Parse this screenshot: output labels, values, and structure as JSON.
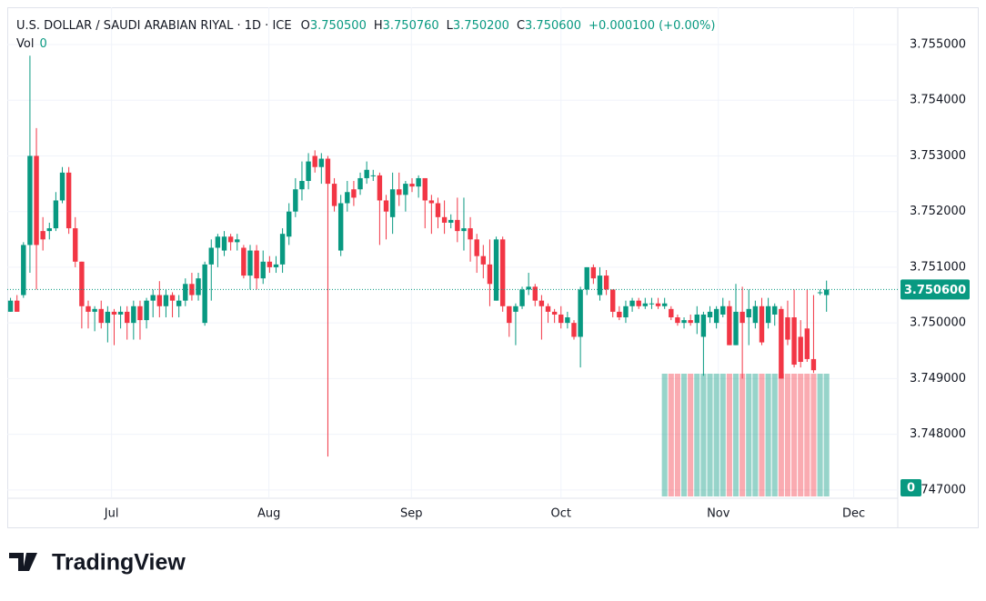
{
  "chart_data": {
    "type": "candlestick",
    "title": "U.S. DOLLAR / SAUDI ARABIAN RIYAL · 1D · ICE",
    "ohlc_legend": [
      {
        "label": "O",
        "value": "3.750500"
      },
      {
        "label": "H",
        "value": "3.750760"
      },
      {
        "label": "L",
        "value": "3.750200"
      },
      {
        "label": "C",
        "value": "3.750600"
      }
    ],
    "change": "+0.000100 (+0.00%)",
    "volume_label": "Vol",
    "volume_value": "0",
    "last_price_label": "3.750600",
    "volume_axis_label": "0",
    "up_color": "#089981",
    "down_color": "#f23645",
    "open": [
      3.7502,
      3.7504,
      3.7505,
      3.7514,
      3.753,
      3.75165,
      3.75165,
      3.7517,
      3.7522,
      3.7527,
      3.7517,
      3.7511,
      3.7503,
      3.7502,
      3.75025,
      3.75,
      3.7502,
      3.75015,
      3.7502,
      3.75,
      3.7503,
      3.75005,
      3.7504,
      3.7505,
      3.7503,
      3.7505,
      3.7503,
      3.7504,
      3.7507,
      3.7505,
      3.75,
      3.75105,
      3.75135,
      3.7513,
      3.75155,
      3.75145,
      3.75135,
      3.75085,
      3.7513,
      3.7508,
      3.7511,
      3.751,
      3.75105,
      3.75155,
      3.752,
      3.7524,
      3.75255,
      3.753,
      3.7528,
      3.75295,
      3.7525,
      3.7513,
      3.75215,
      3.7524,
      3.7524,
      3.7526,
      3.75265,
      3.75265,
      3.7522,
      3.7519,
      3.7524,
      3.7523,
      3.7525,
      3.75245,
      3.7526,
      3.7522,
      3.75215,
      3.7519,
      3.7518,
      3.75185,
      3.75165,
      3.7517,
      3.7515,
      3.7512,
      3.75105,
      3.7504,
      3.7515,
      3.7503,
      3.7502,
      3.7503,
      3.7506,
      3.75065,
      3.7504,
      3.7503,
      3.7502,
      3.75015,
      3.75,
      3.75,
      3.74975,
      3.7506,
      3.751,
      3.7505,
      3.75085,
      3.7506,
      3.7502,
      3.7501,
      3.7503,
      3.7504,
      3.7503,
      3.75035,
      3.75035,
      3.7503,
      3.75025,
      3.7501,
      3.75,
      3.75005,
      3.75,
      3.74975,
      3.7501,
      3.75,
      3.75015,
      3.7503,
      3.7496,
      3.7502,
      3.7501,
      3.75,
      3.7503,
      3.75,
      3.75015,
      3.75025,
      3.7501,
      3.7501,
      3.74975,
      3.7499,
      3.74935,
      3.75055,
      3.7505
    ],
    "high": [
      3.75045,
      3.7505,
      3.75145,
      3.7548,
      3.7535,
      3.7519,
      3.7518,
      3.75235,
      3.7528,
      3.7528,
      3.7519,
      3.7511,
      3.7504,
      3.7503,
      3.7504,
      3.7503,
      3.75025,
      3.7503,
      3.7503,
      3.7504,
      3.7504,
      3.75045,
      3.7506,
      3.75075,
      3.7506,
      3.75055,
      3.7505,
      3.7508,
      3.7509,
      3.7509,
      3.7511,
      3.7515,
      3.7516,
      3.75165,
      3.7516,
      3.7516,
      3.7514,
      3.7514,
      3.7514,
      3.7513,
      3.7512,
      3.7512,
      3.7517,
      3.75215,
      3.7526,
      3.7529,
      3.75305,
      3.7531,
      3.75305,
      3.753,
      3.7526,
      3.7523,
      3.75255,
      3.75255,
      3.7527,
      3.7529,
      3.75275,
      3.7527,
      3.7523,
      3.7527,
      3.7527,
      3.75255,
      3.7526,
      3.75265,
      3.7526,
      3.7523,
      3.75225,
      3.7522,
      3.75195,
      3.75225,
      3.75225,
      3.7519,
      3.7516,
      3.7514,
      3.7515,
      3.75155,
      3.75155,
      3.7503,
      3.75035,
      3.75065,
      3.7509,
      3.7507,
      3.7505,
      3.75035,
      3.75025,
      3.7503,
      3.7502,
      3.75005,
      3.75065,
      3.751,
      3.75105,
      3.751,
      3.75095,
      3.7506,
      3.7503,
      3.7504,
      3.75045,
      3.75045,
      3.75045,
      3.75045,
      3.75045,
      3.75045,
      3.7503,
      3.75015,
      3.7501,
      3.75015,
      3.7503,
      3.7502,
      3.7503,
      3.7503,
      3.75045,
      3.7504,
      3.7507,
      3.75065,
      3.7506,
      3.7504,
      3.75045,
      3.75045,
      3.75035,
      3.7503,
      3.7504,
      3.7506,
      3.75005,
      3.7506,
      3.7505,
      3.7506,
      3.75076
    ],
    "low": [
      3.7502,
      3.7502,
      3.75045,
      3.7509,
      3.7506,
      3.7513,
      3.7515,
      3.75165,
      3.75215,
      3.7516,
      3.751,
      3.7499,
      3.7499,
      3.74985,
      3.7499,
      3.74965,
      3.7496,
      3.7499,
      3.7497,
      3.7497,
      3.7497,
      3.7499,
      3.7501,
      3.7501,
      3.7501,
      3.7501,
      3.7501,
      3.7503,
      3.7504,
      3.7504,
      3.74995,
      3.7504,
      3.751,
      3.7512,
      3.7513,
      3.7513,
      3.7508,
      3.7506,
      3.7506,
      3.7507,
      3.7509,
      3.7509,
      3.7509,
      3.7514,
      3.7519,
      3.7522,
      3.7524,
      3.7527,
      3.7525,
      3.7476,
      3.752,
      3.7512,
      3.752,
      3.7521,
      3.7523,
      3.7525,
      3.75255,
      3.7514,
      3.7515,
      3.7516,
      3.7521,
      3.752,
      3.75235,
      3.75225,
      3.7517,
      3.7516,
      3.7517,
      3.7516,
      3.7517,
      3.75145,
      3.7513,
      3.7511,
      3.7509,
      3.7508,
      3.7503,
      3.7504,
      3.7502,
      3.74975,
      3.7496,
      3.75025,
      3.7505,
      3.7503,
      3.7497,
      3.75,
      3.75,
      3.7499,
      3.7499,
      3.7497,
      3.7492,
      3.7505,
      3.7507,
      3.7504,
      3.7505,
      3.7501,
      3.75005,
      3.75,
      3.7502,
      3.75025,
      3.75025,
      3.75025,
      3.75025,
      3.75025,
      3.75005,
      3.74995,
      3.7499,
      3.74995,
      3.7498,
      3.74905,
      3.75,
      3.7499,
      3.7501,
      3.7496,
      3.7496,
      3.749,
      3.7496,
      3.7499,
      3.7496,
      3.7499,
      3.74995,
      3.749,
      3.7496,
      3.7492,
      3.7492,
      3.7493,
      3.7491,
      3.7505,
      3.7502
    ],
    "close": [
      3.7504,
      3.7502,
      3.7514,
      3.753,
      3.7514,
      3.7515,
      3.7517,
      3.7522,
      3.7527,
      3.7517,
      3.7511,
      3.7503,
      3.7502,
      3.75025,
      3.75,
      3.7502,
      3.75015,
      3.7502,
      3.75,
      3.7503,
      3.75005,
      3.7504,
      3.7505,
      3.7503,
      3.7505,
      3.7504,
      3.7504,
      3.7507,
      3.7505,
      3.7508,
      3.75105,
      3.75135,
      3.75155,
      3.75155,
      3.75145,
      3.7515,
      3.75085,
      3.7513,
      3.7508,
      3.7511,
      3.751,
      3.75105,
      3.7516,
      3.752,
      3.7524,
      3.75255,
      3.7529,
      3.7528,
      3.75295,
      3.7525,
      3.7521,
      3.75215,
      3.75235,
      3.75225,
      3.7526,
      3.75275,
      3.75265,
      3.7522,
      3.752,
      3.7524,
      3.7523,
      3.7525,
      3.75245,
      3.7526,
      3.7522,
      3.75215,
      3.7519,
      3.7518,
      3.75185,
      3.75165,
      3.7517,
      3.7515,
      3.7512,
      3.75105,
      3.7507,
      3.7515,
      3.7503,
      3.75,
      3.7503,
      3.7506,
      3.75065,
      3.7504,
      3.7503,
      3.7502,
      3.75015,
      3.75,
      3.7501,
      3.74975,
      3.7506,
      3.751,
      3.7508,
      3.75085,
      3.7506,
      3.7502,
      3.7501,
      3.7503,
      3.7504,
      3.7503,
      3.75035,
      3.75035,
      3.7503,
      3.75035,
      3.7501,
      3.75,
      3.75005,
      3.75,
      3.75015,
      3.75015,
      3.7502,
      3.75025,
      3.7503,
      3.7496,
      3.7502,
      3.75,
      3.75025,
      3.7503,
      3.74965,
      3.7503,
      3.7503,
      3.749,
      3.7497,
      3.74925,
      3.7493,
      3.74935,
      3.74915,
      3.75055,
      3.7506
    ],
    "ylim": [
      3.74685,
      3.75567
    ],
    "yticks": [
      {
        "value": 3.755,
        "label": "3.755000"
      },
      {
        "value": 3.754,
        "label": "3.754000"
      },
      {
        "value": 3.753,
        "label": "3.753000"
      },
      {
        "value": 3.752,
        "label": "3.752000"
      },
      {
        "value": 3.751,
        "label": "3.751000"
      },
      {
        "value": 3.75,
        "label": "3.750000"
      },
      {
        "value": 3.749,
        "label": "3.749000"
      },
      {
        "value": 3.748,
        "label": "3.748000"
      },
      {
        "value": 3.747,
        "label": "3.747000"
      }
    ],
    "xlim": [
      -0.5,
      137
    ],
    "xticks": [
      {
        "value": 15.6,
        "label": "Jul"
      },
      {
        "value": 39.9,
        "label": "Aug"
      },
      {
        "value": 61.9,
        "label": "Sep"
      },
      {
        "value": 85,
        "label": "Oct"
      },
      {
        "value": 109.3,
        "label": "Nov"
      },
      {
        "value": 130.2,
        "label": "Dec"
      }
    ],
    "grid": true
  },
  "brand": "TradingView"
}
